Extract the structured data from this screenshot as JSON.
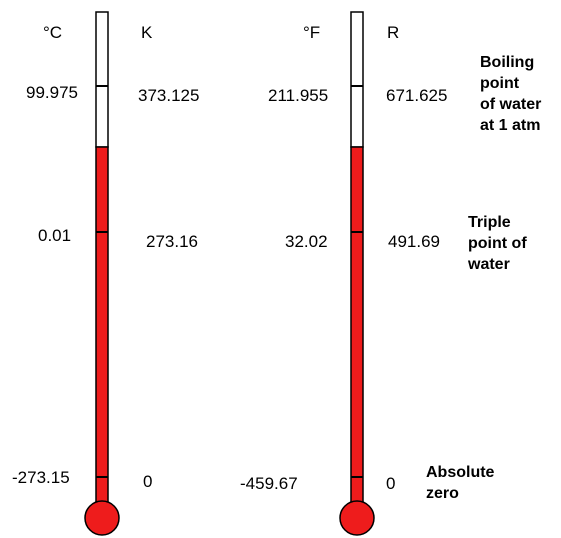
{
  "colors": {
    "mercury": "#ee1c1c",
    "tube_fill": "#ffffff",
    "outline": "#000000"
  },
  "thermometers": [
    {
      "id": "celsius-kelvin",
      "left_unit": "°C",
      "right_unit": "K",
      "values": {
        "boiling": {
          "left": "99.975",
          "right": "373.125"
        },
        "triple": {
          "left": "0.01",
          "right": "273.16"
        },
        "zero": {
          "left": "-273.15",
          "right": "0"
        }
      }
    },
    {
      "id": "fahrenheit-rankine",
      "left_unit": "°F",
      "right_unit": "R",
      "values": {
        "boiling": {
          "left": "211.955",
          "right": "671.625"
        },
        "triple": {
          "left": "32.02",
          "right": "491.69"
        },
        "zero": {
          "left": "-459.67",
          "right": "0"
        }
      }
    }
  ],
  "annotations": {
    "boiling": "Boiling\npoint\nof water\nat 1 atm",
    "triple": "Triple\npoint of\nwater",
    "zero": "Absolute\nzero"
  }
}
